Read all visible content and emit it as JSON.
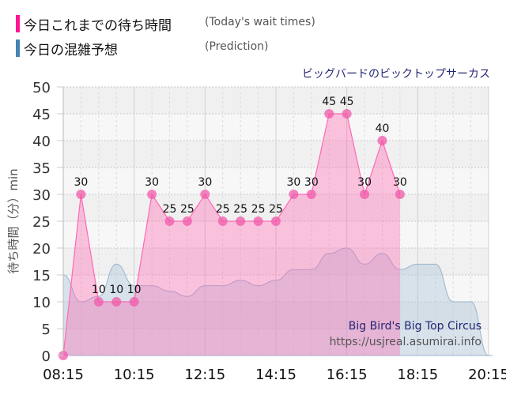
{
  "legend": {
    "today": {
      "label_jp": "今日これまでの待ち時間",
      "label_en": "(Today's wait times)",
      "color": "#ff1493"
    },
    "prediction": {
      "label_jp": "今日の混雑予想",
      "label_en": "(Prediction)",
      "color": "#4682b4"
    }
  },
  "attraction_jp": "ビッグバードのビックトップサーカス",
  "watermark": {
    "name_en": "Big Bird's Big Top Circus",
    "url": "https://usjreal.asumirai.info"
  },
  "chart_data": {
    "type": "area",
    "title": "ビッグバードのビックトップサーカス",
    "xlabel": "",
    "ylabel": "待ち時間（分）min",
    "ylim": [
      0,
      50
    ],
    "yticks": [
      0,
      5,
      10,
      15,
      20,
      25,
      30,
      35,
      40,
      45,
      50
    ],
    "xticks": [
      "08:15",
      "10:15",
      "12:15",
      "14:15",
      "16:15",
      "18:15",
      "20:15"
    ],
    "xrange": [
      "08:15",
      "20:15"
    ],
    "grid": true,
    "legend_position": "top-left",
    "series": [
      {
        "name": "今日これまでの待ち時間 (Today's wait times)",
        "color": "#ff69b4",
        "x": [
          "08:15",
          "08:45",
          "09:15",
          "09:45",
          "10:15",
          "10:45",
          "11:15",
          "11:45",
          "12:15",
          "12:45",
          "13:15",
          "13:45",
          "14:15",
          "14:45",
          "15:15",
          "15:45",
          "16:15",
          "16:45",
          "17:15",
          "17:45"
        ],
        "values": [
          0,
          30,
          10,
          10,
          10,
          30,
          25,
          25,
          30,
          25,
          25,
          25,
          25,
          30,
          30,
          45,
          45,
          30,
          40,
          30
        ]
      },
      {
        "name": "今日の混雑予想 (Prediction)",
        "color": "#a8c0d8",
        "x": [
          "08:15",
          "08:45",
          "09:15",
          "09:45",
          "10:15",
          "10:45",
          "11:15",
          "11:45",
          "12:15",
          "12:45",
          "13:15",
          "13:45",
          "14:15",
          "14:45",
          "15:15",
          "15:45",
          "16:15",
          "16:45",
          "17:15",
          "17:45",
          "18:15",
          "18:45",
          "19:15",
          "19:45",
          "20:15",
          "20:30"
        ],
        "values": [
          15,
          10,
          11,
          17,
          13,
          13,
          12,
          11,
          13,
          13,
          14,
          13,
          14,
          16,
          16,
          19,
          20,
          17,
          19,
          16,
          17,
          17,
          10,
          10,
          0,
          0
        ]
      }
    ]
  }
}
